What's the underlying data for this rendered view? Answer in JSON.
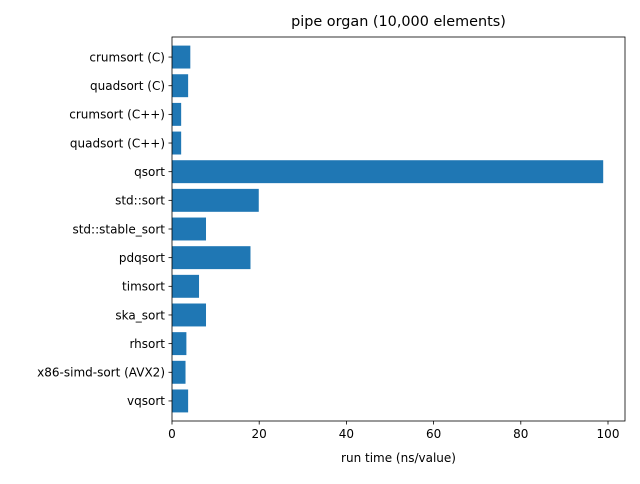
{
  "chart_data": {
    "type": "bar",
    "orientation": "horizontal",
    "title": "pipe organ (10,000 elements)",
    "xlabel": "run time (ns/value)",
    "ylabel": "",
    "categories": [
      "crumsort (C)",
      "quadsort (C)",
      "crumsort (C++)",
      "quadsort (C++)",
      "qsort",
      "std::sort",
      "std::stable_sort",
      "pdqsort",
      "timsort",
      "ska_sort",
      "rhsort",
      "x86-simd-sort (AVX2)",
      "vqsort"
    ],
    "values": [
      4.2,
      3.7,
      2.1,
      2.1,
      98.9,
      19.9,
      7.8,
      18.0,
      6.2,
      7.8,
      3.3,
      3.1,
      3.7
    ],
    "xlim": [
      0,
      103.9
    ],
    "xticks": [
      0,
      20,
      40,
      60,
      80,
      100
    ],
    "bar_color": "#1f77b4",
    "grid": false
  }
}
